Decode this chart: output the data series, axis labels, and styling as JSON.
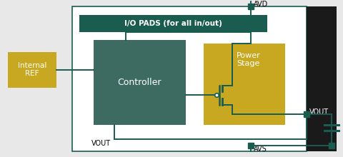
{
  "bg_color": "#e8e8e8",
  "dark_green": "#1a5c50",
  "mid_green": "#3d6b62",
  "gold": "#c8a820",
  "line_color": "#1a5c50",
  "white": "#ffffff",
  "black_bg": "#1a1a1a",
  "io_pads_label": "I/O PADS (for all in/out)",
  "controller_label": "Controller",
  "power_stage_label": "Power\nStage",
  "ref_label": "Internal\nREF",
  "avd_label": "AVD",
  "avs_label": "AVS",
  "vout_label_right": "VOUT",
  "vout_label_bottom": "VOUT"
}
